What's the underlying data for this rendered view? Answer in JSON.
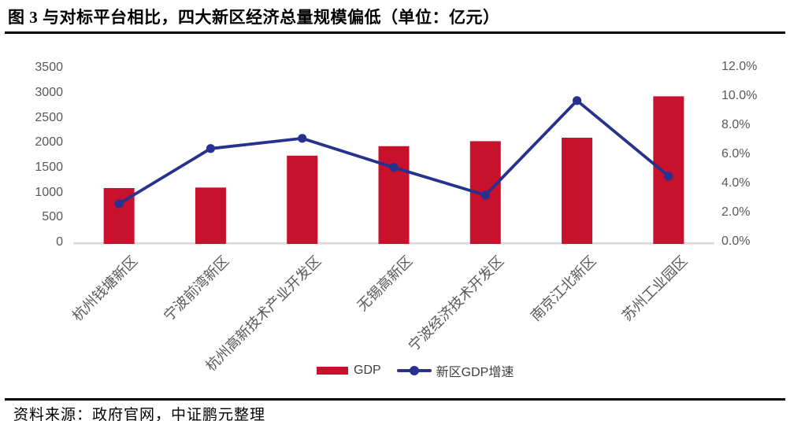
{
  "figure": {
    "title": "图 3 与对标平台相比，四大新区经济总量规模偏低（单位：亿元）",
    "source_note": "资料来源：政府官网，中证鹏元整理"
  },
  "legend": {
    "gdp_label": "GDP",
    "growth_label": "新区GDP增速"
  },
  "colors": {
    "bar": "#C8112C",
    "line": "#27318E",
    "axis_text": "#595959",
    "legend_text": "#3F3F3F",
    "baseline": "#D9D9D9",
    "rule": "#000000",
    "background": "#FFFFFF"
  },
  "chart_data": {
    "type": "bar",
    "subtype": "bar+line combo, dual axis",
    "title": "图 3 与对标平台相比，四大新区经济总量规模偏低（单位：亿元）",
    "categories": [
      "杭州钱塘新区",
      "宁波前湾新区",
      "杭州高新技术产业开发区",
      "无锡高新区",
      "宁波经济技术开发区",
      "南京江北新区",
      "苏州工业园区"
    ],
    "series": [
      {
        "name": "GDP",
        "type": "bar",
        "axis": "left",
        "unit": "亿元",
        "values": [
          1090,
          1100,
          1740,
          1930,
          2030,
          2100,
          2930
        ]
      },
      {
        "name": "新区GDP增速",
        "type": "line",
        "axis": "right",
        "unit": "%",
        "values": [
          2.6,
          6.4,
          7.1,
          5.1,
          3.2,
          9.7,
          4.5
        ]
      }
    ],
    "left_axis": {
      "min": 0,
      "max": 3500,
      "ticks": [
        0,
        500,
        1000,
        1500,
        2000,
        2500,
        3000,
        3500
      ]
    },
    "right_axis": {
      "min": 0,
      "max": 12,
      "tick_labels": [
        "0.0%",
        "2.0%",
        "4.0%",
        "6.0%",
        "8.0%",
        "10.0%",
        "12.0%"
      ]
    },
    "grid": false,
    "legend_position": "bottom-center"
  }
}
